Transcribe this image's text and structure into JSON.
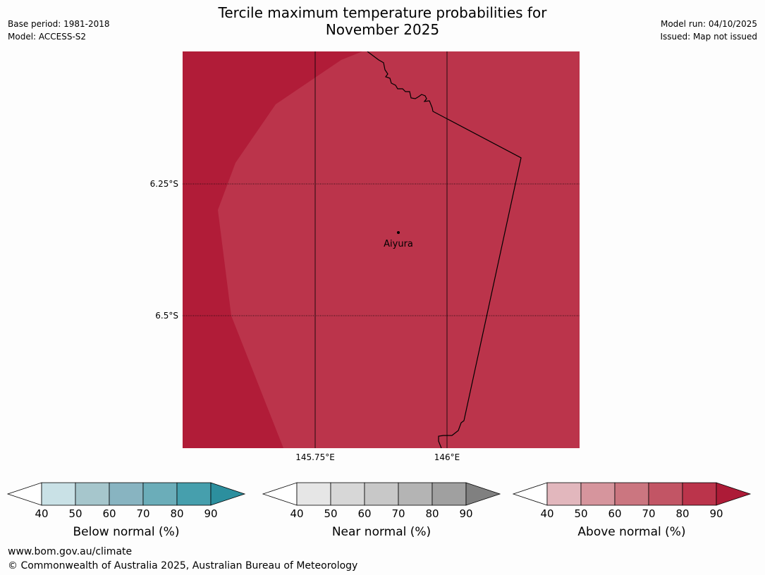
{
  "title_line1": "Tercile maximum temperature probabilities for",
  "title_line2": "November 2025",
  "base_period": "Base period: 1981-2018",
  "model": "Model: ACCESS-S2",
  "model_run": "Model run: 04/10/2025",
  "issued": "Issued: Map not issued",
  "map": {
    "lat_labels": [
      "6.25°S",
      "6.5°S"
    ],
    "lon_labels": [
      "145.75°E",
      "146°E"
    ],
    "place": "Aiyura",
    "colors": {
      "outer": "#b11c38",
      "inner": "#bb344b",
      "border": "#000000"
    }
  },
  "colorbars": [
    {
      "label": "Below normal (%)",
      "ticks": [
        "40",
        "50",
        "60",
        "70",
        "80",
        "90"
      ],
      "colors": [
        "#c9e1e6",
        "#a6c6cc",
        "#88b4c1",
        "#6badb9",
        "#469fad",
        "#2c8f9e"
      ]
    },
    {
      "label": "Near normal (%)",
      "ticks": [
        "40",
        "50",
        "60",
        "70",
        "80",
        "90"
      ],
      "colors": [
        "#e6e6e6",
        "#d7d7d7",
        "#c8c8c8",
        "#b4b4b4",
        "#a0a0a0",
        "#808080"
      ]
    },
    {
      "label": "Above normal (%)",
      "ticks": [
        "40",
        "50",
        "60",
        "70",
        "80",
        "90"
      ],
      "colors": [
        "#e2b7bd",
        "#d6959d",
        "#cb7680",
        "#c25565",
        "#bb344b",
        "#ad1b37"
      ]
    }
  ],
  "footer_url": "www.bom.gov.au/climate",
  "footer_copyright": "© Commonwealth of Australia 2025, Australian Bureau of Meteorology"
}
